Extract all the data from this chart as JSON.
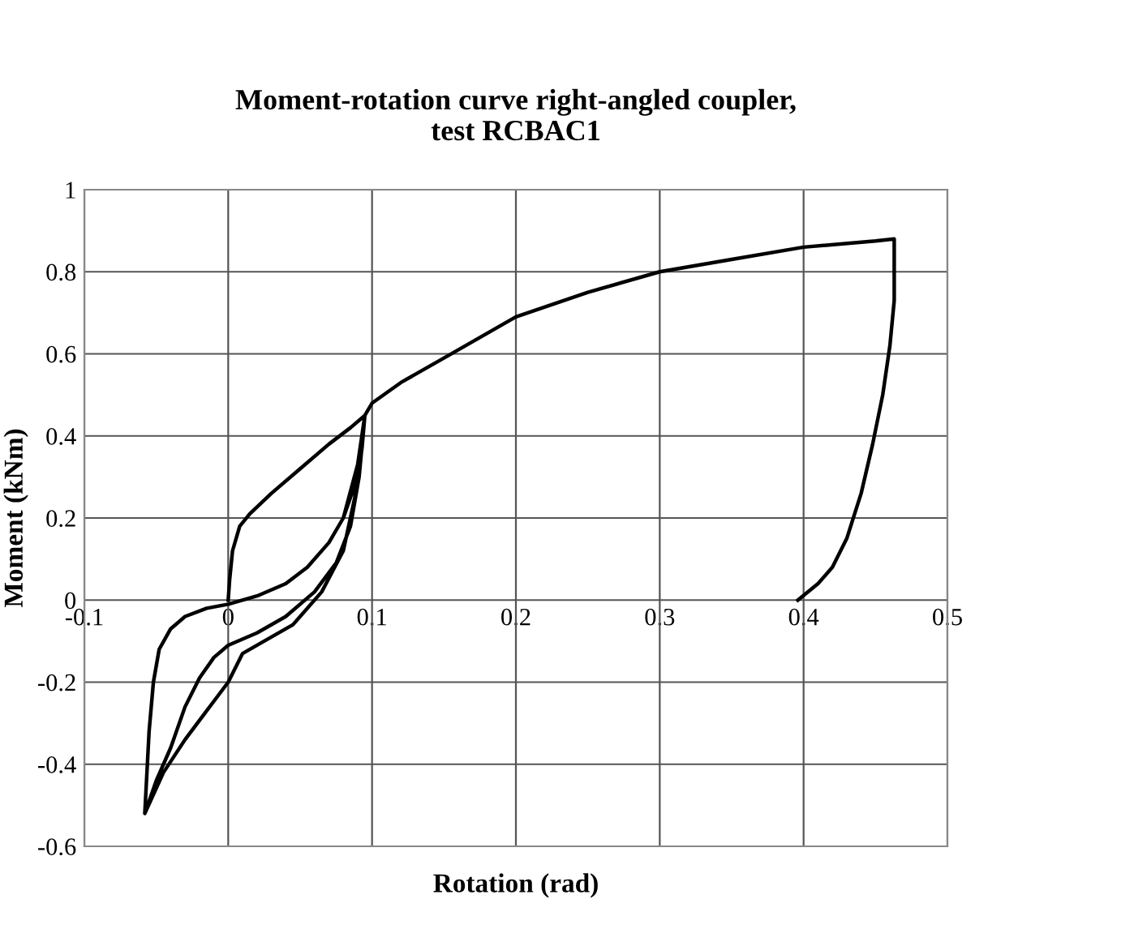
{
  "chart_data": {
    "type": "line",
    "title": "Moment-rotation curve right-angled coupler,\ntest RCBAC1",
    "xlabel": "Rotation (rad)",
    "ylabel": "Moment (kNm)",
    "xlim": [
      -0.1,
      0.5
    ],
    "ylim": [
      -0.6,
      1
    ],
    "xticks": [
      -0.1,
      0,
      0.1,
      0.2,
      0.3,
      0.4,
      0.5
    ],
    "yticks": [
      -0.6,
      -0.4,
      -0.2,
      0,
      0.2,
      0.4,
      0.6,
      0.8,
      1
    ],
    "grid": true,
    "legend": false,
    "marker": "none",
    "line_style": "solid",
    "series": [
      {
        "color": "#000000",
        "x": [
          0,
          0.001,
          0.003,
          0.008,
          0.015,
          0.03,
          0.05,
          0.07,
          0.085,
          0.095,
          0.093,
          0.088,
          0.08,
          0.07,
          0.055,
          0.04,
          0.02,
          0.0,
          -0.015,
          -0.03,
          -0.04,
          -0.048,
          -0.052,
          -0.055,
          -0.058,
          -0.045,
          -0.03,
          -0.015,
          0.0,
          0.01,
          0.025,
          0.045,
          0.065,
          0.08,
          0.088,
          0.093,
          0.095,
          0.09,
          0.08,
          0.07,
          0.055,
          0.04,
          0.02,
          0.0,
          -0.015,
          -0.03,
          -0.04,
          -0.048,
          -0.052,
          -0.055,
          -0.058,
          -0.05,
          -0.04,
          -0.03,
          -0.02,
          -0.01,
          0.0,
          0.02,
          0.04,
          0.06,
          0.075,
          0.085,
          0.091,
          0.095,
          0.1,
          0.12,
          0.15,
          0.2,
          0.25,
          0.3,
          0.35,
          0.4,
          0.45,
          0.463,
          0.463,
          0.46,
          0.455,
          0.448,
          0.44,
          0.43,
          0.42,
          0.41,
          0.396
        ],
        "values": [
          0,
          0.05,
          0.12,
          0.18,
          0.21,
          0.26,
          0.32,
          0.38,
          0.42,
          0.45,
          0.38,
          0.28,
          0.2,
          0.14,
          0.08,
          0.04,
          0.01,
          -0.01,
          -0.02,
          -0.04,
          -0.07,
          -0.12,
          -0.2,
          -0.32,
          -0.52,
          -0.42,
          -0.34,
          -0.27,
          -0.2,
          -0.13,
          -0.1,
          -0.06,
          0.02,
          0.12,
          0.25,
          0.37,
          0.45,
          0.33,
          0.2,
          0.14,
          0.08,
          0.04,
          0.01,
          -0.01,
          -0.02,
          -0.04,
          -0.07,
          -0.12,
          -0.2,
          -0.32,
          -0.52,
          -0.44,
          -0.36,
          -0.26,
          -0.19,
          -0.14,
          -0.11,
          -0.08,
          -0.04,
          0.02,
          0.09,
          0.18,
          0.3,
          0.45,
          0.48,
          0.53,
          0.59,
          0.69,
          0.75,
          0.8,
          0.83,
          0.86,
          0.875,
          0.88,
          0.73,
          0.62,
          0.5,
          0.38,
          0.26,
          0.15,
          0.08,
          0.04,
          0.0
        ]
      }
    ]
  }
}
